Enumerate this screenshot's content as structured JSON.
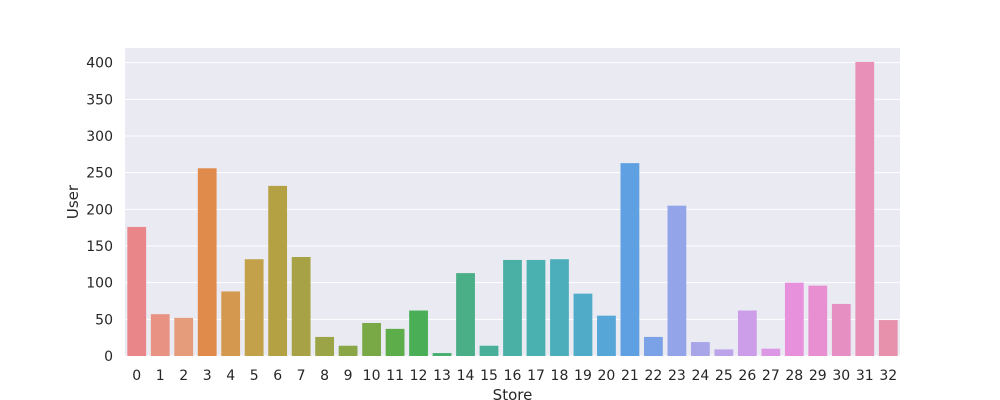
{
  "chart_data": {
    "type": "bar",
    "xlabel": "Store",
    "ylabel": "User",
    "ylim": [
      0,
      420
    ],
    "grid": true,
    "categories": [
      "0",
      "1",
      "2",
      "3",
      "4",
      "5",
      "6",
      "7",
      "8",
      "9",
      "10",
      "11",
      "12",
      "13",
      "14",
      "15",
      "16",
      "17",
      "18",
      "19",
      "20",
      "21",
      "22",
      "23",
      "24",
      "25",
      "26",
      "27",
      "28",
      "29",
      "30",
      "31",
      "32"
    ],
    "values": [
      176,
      57,
      52,
      256,
      88,
      132,
      232,
      135,
      26,
      14,
      45,
      37,
      62,
      4,
      113,
      14,
      131,
      131,
      132,
      85,
      55,
      263,
      26,
      205,
      19,
      9,
      62,
      10,
      100,
      96,
      71,
      401,
      49
    ],
    "yticks": [
      0,
      50,
      100,
      150,
      200,
      250,
      300,
      350,
      400
    ],
    "colors": [
      "#e8868a",
      "#e79282",
      "#e59c7a",
      "#e08a4c",
      "#d4984e",
      "#c3a14a",
      "#b4a144",
      "#a8a247",
      "#9ba447",
      "#8ba646",
      "#79a946",
      "#5dad4a",
      "#4aae57",
      "#48ae6f",
      "#4aae86",
      "#4aaf99",
      "#4ab0a6",
      "#4bb0b0",
      "#4caebb",
      "#4fabc8",
      "#56a6d8",
      "#5fa0e2",
      "#7ba2e6",
      "#94a4e8",
      "#a8a6e9",
      "#bba4e9",
      "#cc9de8",
      "#dc98e4",
      "#e790dc",
      "#e78fd0",
      "#e68fc3",
      "#e890b8",
      "#e891ac"
    ]
  }
}
